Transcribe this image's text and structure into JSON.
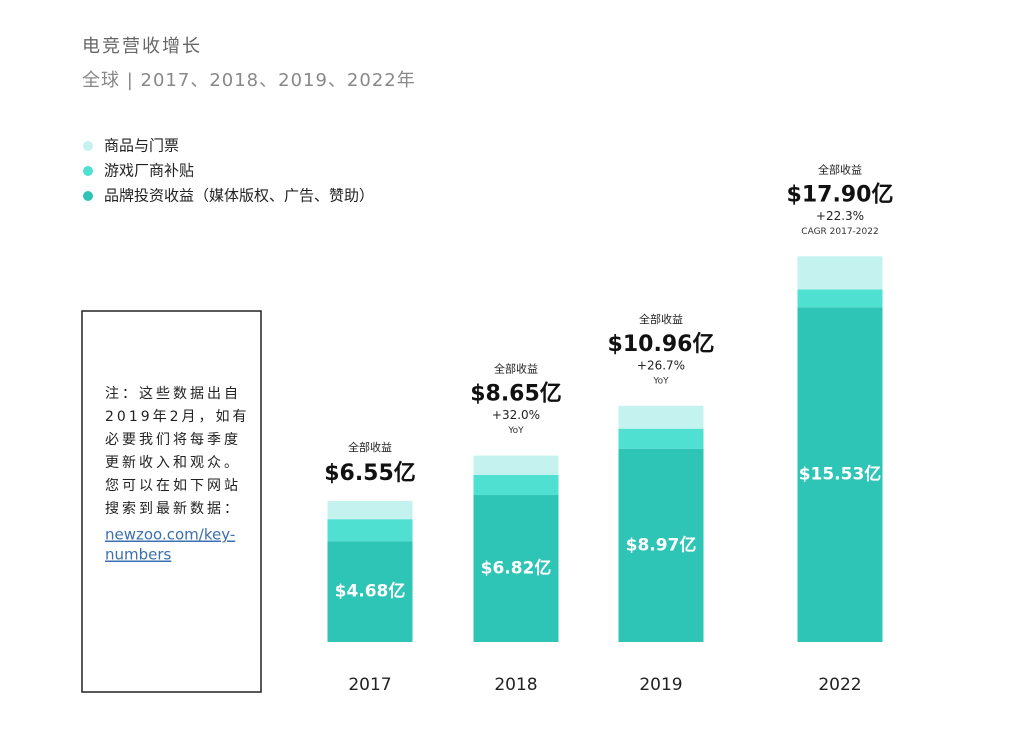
{
  "chart_data": {
    "type": "stacked_bar",
    "title": "电竞营收增长",
    "subtitle": "全球 | 2017、2018、2019、2022年",
    "categories": [
      "2017",
      "2018",
      "2019",
      "2022"
    ],
    "series": [
      {
        "name": "品牌投资收益（媒体版权、广告、赞助）",
        "color": "#2ec4b6",
        "values": [
          4.68,
          6.82,
          8.97,
          15.53
        ],
        "value_labels": [
          "$4.68亿",
          "$6.82亿",
          "$8.97亿",
          "$15.53亿"
        ]
      },
      {
        "name": "游戏厂商补贴",
        "color": "#4fe0d2",
        "values": [
          1.02,
          0.93,
          0.93,
          0.83
        ]
      },
      {
        "name": "商品与门票",
        "color": "#c4f3ef",
        "values": [
          0.85,
          0.9,
          1.06,
          1.54
        ]
      }
    ],
    "totals": {
      "caption": "全部收益",
      "values": [
        6.55,
        8.65,
        10.96,
        17.9
      ],
      "value_labels": [
        "$6.55亿",
        "$8.65亿",
        "$10.96亿",
        "$17.90亿"
      ]
    },
    "growth": {
      "values": [
        null,
        32.0,
        26.7,
        22.3
      ],
      "value_labels": [
        null,
        "+32.0%",
        "+26.7%",
        "+22.3%"
      ],
      "notes": [
        null,
        "YoY",
        "YoY",
        "CAGR 2017-2022"
      ]
    },
    "ylim": [
      0,
      20
    ],
    "note": {
      "lines": [
        "注：这些数据出自",
        "2019年2月，如有",
        "必要我们将每季度",
        "更新收入和观众。",
        "您可以在如下网站",
        "搜索到最新数据："
      ],
      "link_lines": [
        "newzoo.com/key-",
        "numbers"
      ]
    }
  }
}
